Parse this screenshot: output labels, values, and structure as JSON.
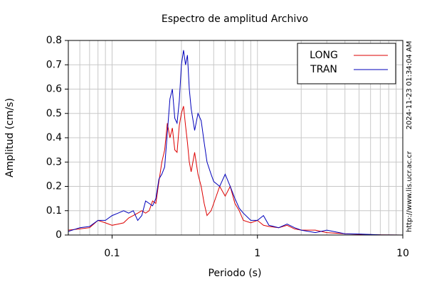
{
  "chart_data": {
    "type": "line",
    "title": "Espectro de amplitud Archivo",
    "xlabel": "Periodo (s)",
    "ylabel": "Amplitud (cm/s)",
    "timestamp": "2024-11-23 01:34:04 AM",
    "source": "http://www.lis.ucr.ac.cr",
    "xscale": "log",
    "grid": true,
    "legend": "upper right",
    "xlim": [
      0.05,
      10
    ],
    "xticks": [
      0.1,
      1,
      10
    ],
    "xminorticks": [
      0.06,
      0.07,
      0.08,
      0.09,
      0.2,
      0.3,
      0.4,
      0.5,
      0.6,
      0.7,
      0.8,
      0.9,
      2,
      3,
      4,
      5,
      6,
      7,
      8,
      9
    ],
    "ylim": [
      0,
      0.8
    ],
    "yticks": [
      0,
      0.1,
      0.2,
      0.3,
      0.4,
      0.5,
      0.6,
      0.7,
      0.8
    ],
    "x": [
      0.05,
      0.06,
      0.07,
      0.08,
      0.09,
      0.1,
      0.11,
      0.12,
      0.13,
      0.14,
      0.15,
      0.16,
      0.17,
      0.18,
      0.19,
      0.2,
      0.21,
      0.22,
      0.23,
      0.24,
      0.25,
      0.26,
      0.27,
      0.28,
      0.29,
      0.3,
      0.31,
      0.32,
      0.33,
      0.34,
      0.35,
      0.37,
      0.39,
      0.41,
      0.43,
      0.45,
      0.48,
      0.5,
      0.55,
      0.6,
      0.65,
      0.7,
      0.75,
      0.8,
      0.9,
      1.0,
      1.1,
      1.2,
      1.4,
      1.6,
      1.8,
      2,
      2.5,
      3,
      4,
      5,
      7,
      10
    ],
    "series": [
      {
        "name": "LONG",
        "color": "#dd0000",
        "values": [
          0.02,
          0.025,
          0.03,
          0.06,
          0.05,
          0.04,
          0.045,
          0.05,
          0.07,
          0.08,
          0.09,
          0.1,
          0.09,
          0.1,
          0.14,
          0.13,
          0.22,
          0.3,
          0.35,
          0.46,
          0.4,
          0.44,
          0.35,
          0.34,
          0.45,
          0.5,
          0.53,
          0.45,
          0.38,
          0.3,
          0.26,
          0.34,
          0.25,
          0.2,
          0.13,
          0.08,
          0.1,
          0.13,
          0.2,
          0.16,
          0.2,
          0.13,
          0.1,
          0.06,
          0.05,
          0.06,
          0.04,
          0.035,
          0.03,
          0.04,
          0.025,
          0.02,
          0.02,
          0.01,
          0.005,
          0.003,
          0.001,
          0
        ]
      },
      {
        "name": "TRAN",
        "color": "#0000bb",
        "values": [
          0.015,
          0.03,
          0.035,
          0.06,
          0.06,
          0.08,
          0.09,
          0.1,
          0.09,
          0.1,
          0.06,
          0.08,
          0.14,
          0.13,
          0.12,
          0.15,
          0.23,
          0.25,
          0.28,
          0.42,
          0.56,
          0.6,
          0.48,
          0.46,
          0.55,
          0.7,
          0.76,
          0.7,
          0.74,
          0.6,
          0.52,
          0.43,
          0.5,
          0.47,
          0.38,
          0.3,
          0.25,
          0.22,
          0.2,
          0.25,
          0.2,
          0.15,
          0.11,
          0.09,
          0.06,
          0.06,
          0.08,
          0.04,
          0.03,
          0.045,
          0.03,
          0.02,
          0.01,
          0.02,
          0.005,
          0.004,
          0.001,
          0
        ]
      }
    ]
  }
}
